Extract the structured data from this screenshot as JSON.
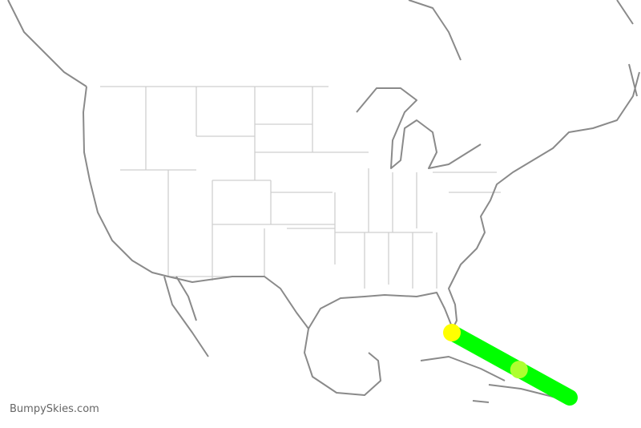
{
  "watermark": "BumpySkies.com",
  "route": {
    "line_color": "#00ff00",
    "origin_marker_color": "#ffff00",
    "current_position_color": "#adff2f",
    "progress": 0.57
  }
}
